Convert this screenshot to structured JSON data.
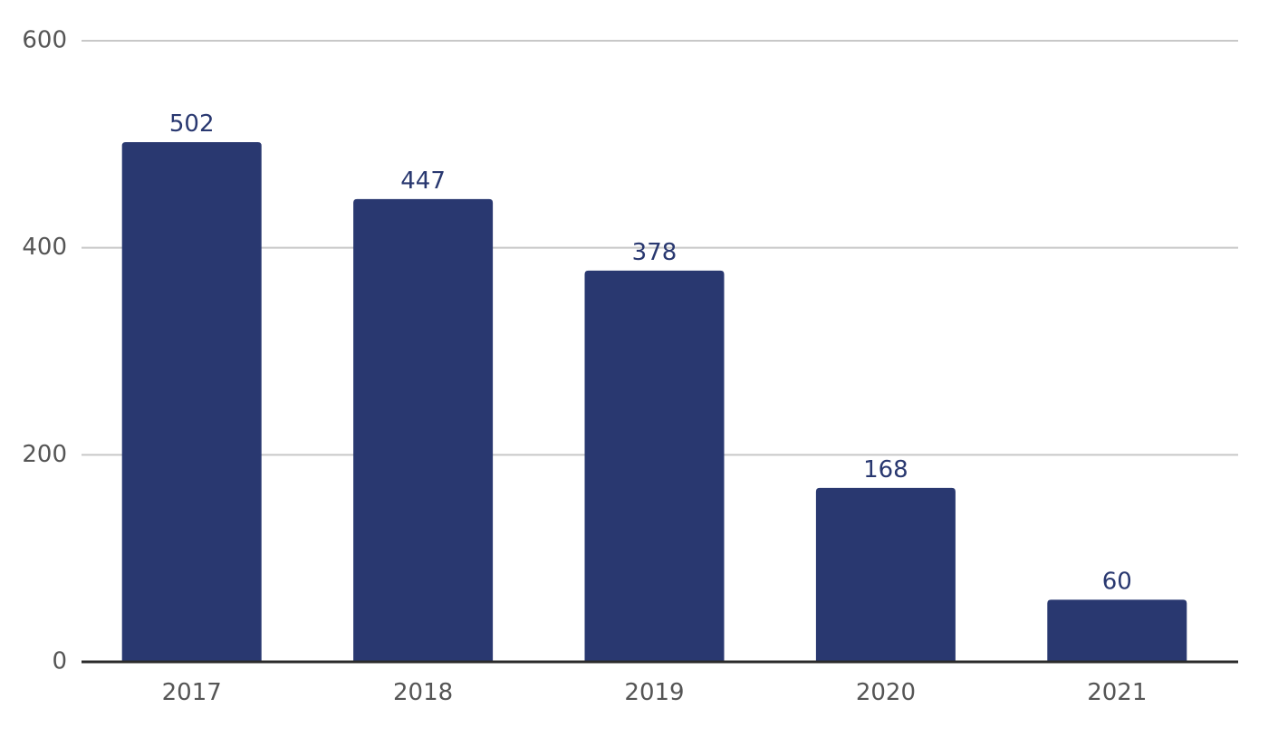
{
  "chart_data": {
    "type": "bar",
    "categories": [
      "2017",
      "2018",
      "2019",
      "2020",
      "2021"
    ],
    "values": [
      502,
      447,
      378,
      168,
      60
    ],
    "data_labels": [
      "502",
      "447",
      "378",
      "168",
      "60"
    ],
    "y_ticks": [
      0,
      200,
      400,
      600
    ],
    "y_tick_labels": [
      "0",
      "200",
      "400",
      "600"
    ],
    "ylim": [
      0,
      600
    ],
    "title": "",
    "xlabel": "",
    "ylabel": "",
    "grid": true,
    "legend": "none",
    "colors": {
      "bar": "#293870",
      "grid": "#c8c8c8",
      "axis": "#2b2b2b",
      "tick_text": "#555555",
      "label_text": "#293870"
    }
  }
}
